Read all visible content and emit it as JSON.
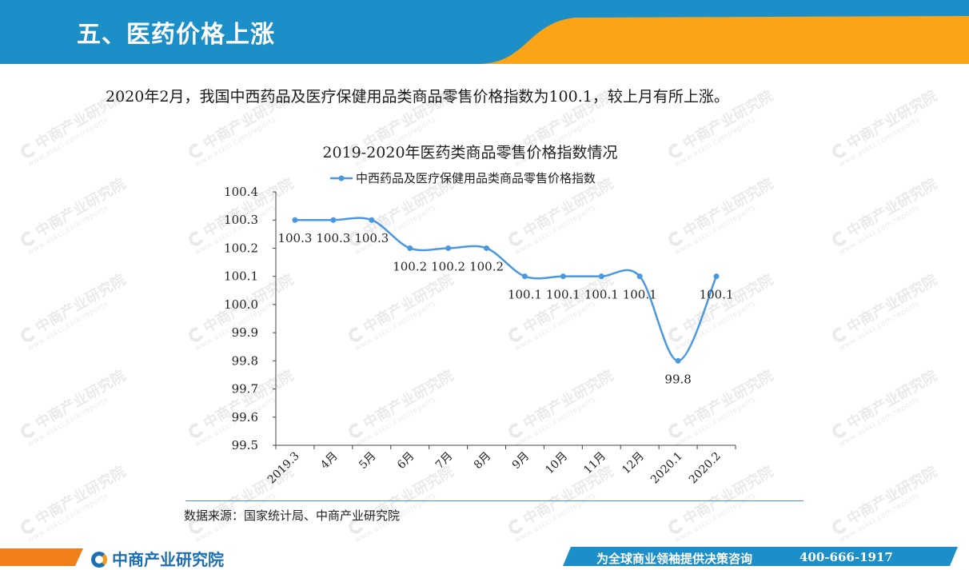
{
  "header": {
    "title": "五、医药价格上涨",
    "colors": {
      "primary": "#1c8ec8",
      "accent": "#fba418"
    }
  },
  "summary": "2020年2月，我国中西药品及医疗保健用品类商品零售价格指数为100.1，较上月有所上涨。",
  "watermark": {
    "name": "中商产业研究院",
    "url": "www.askci.com/reports"
  },
  "chart_data": {
    "type": "line",
    "title": "2019-2020年医药类商品零售价格指数情况",
    "categories": [
      "2019.3",
      "4月",
      "5月",
      "6月",
      "7月",
      "8月",
      "9月",
      "10月",
      "11月",
      "12月",
      "2020.1",
      "2020.2"
    ],
    "series": [
      {
        "name": "中西药品及医疗保健用品类商品零售价格指数",
        "values": [
          100.3,
          100.3,
          100.3,
          100.2,
          100.2,
          100.2,
          100.1,
          100.1,
          100.1,
          100.1,
          99.8,
          100.1
        ],
        "color": "#4a98e0"
      }
    ],
    "data_labels": [
      "100.3",
      "100.3",
      "100.3",
      "100.2",
      "100.2",
      "100.2",
      "100.1",
      "100.1",
      "100.1",
      "100.1",
      "99.8",
      "100.1"
    ],
    "ylim": [
      99.5,
      100.4
    ],
    "yticks": [
      "100.4",
      "100.3",
      "100.2",
      "100.1",
      "100.0",
      "99.9",
      "99.8",
      "99.7",
      "99.6",
      "99.5"
    ],
    "legend": "top",
    "grid": false,
    "smooth": true
  },
  "source": "数据来源：国家统计局、中商产业研究院",
  "footer": {
    "logo_text": "中商产业研究院",
    "slogan": "为全球商业领袖提供决策咨询",
    "phone": "400-666-1917"
  }
}
